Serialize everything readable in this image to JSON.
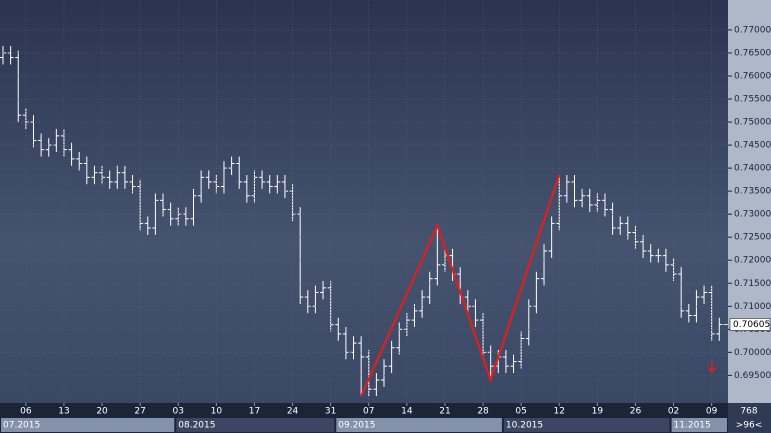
{
  "chart_data": {
    "type": "ohlc",
    "dates": [
      "2015-07-01",
      "2015-07-02",
      "2015-07-03",
      "2015-07-06",
      "2015-07-07",
      "2015-07-08",
      "2015-07-09",
      "2015-07-10",
      "2015-07-13",
      "2015-07-14",
      "2015-07-15",
      "2015-07-16",
      "2015-07-17",
      "2015-07-20",
      "2015-07-21",
      "2015-07-22",
      "2015-07-23",
      "2015-07-24",
      "2015-07-27",
      "2015-07-28",
      "2015-07-29",
      "2015-07-30",
      "2015-07-31",
      "2015-08-03",
      "2015-08-04",
      "2015-08-05",
      "2015-08-06",
      "2015-08-07",
      "2015-08-10",
      "2015-08-11",
      "2015-08-12",
      "2015-08-13",
      "2015-08-14",
      "2015-08-17",
      "2015-08-18",
      "2015-08-19",
      "2015-08-20",
      "2015-08-21",
      "2015-08-24",
      "2015-08-25",
      "2015-08-26",
      "2015-08-27",
      "2015-08-28",
      "2015-08-31",
      "2015-09-01",
      "2015-09-02",
      "2015-09-03",
      "2015-09-04",
      "2015-09-07",
      "2015-09-08",
      "2015-09-09",
      "2015-09-10",
      "2015-09-11",
      "2015-09-14",
      "2015-09-15",
      "2015-09-16",
      "2015-09-17",
      "2015-09-18",
      "2015-09-21",
      "2015-09-22",
      "2015-09-23",
      "2015-09-24",
      "2015-09-25",
      "2015-09-28",
      "2015-09-29",
      "2015-09-30",
      "2015-10-01",
      "2015-10-02",
      "2015-10-05",
      "2015-10-06",
      "2015-10-07",
      "2015-10-08",
      "2015-10-09",
      "2015-10-12",
      "2015-10-13",
      "2015-10-14",
      "2015-10-15",
      "2015-10-16",
      "2015-10-19",
      "2015-10-20",
      "2015-10-21",
      "2015-10-22",
      "2015-10-23",
      "2015-10-26",
      "2015-10-27",
      "2015-10-28",
      "2015-10-29",
      "2015-10-30",
      "2015-11-02",
      "2015-11-03",
      "2015-11-04",
      "2015-11-05",
      "2015-11-06",
      "2015-11-09",
      "2015-11-10"
    ],
    "open": [
      0.764,
      0.765,
      0.764,
      0.7515,
      0.75,
      0.746,
      0.744,
      0.745,
      0.747,
      0.744,
      0.742,
      0.741,
      0.738,
      0.739,
      0.738,
      0.737,
      0.739,
      0.737,
      0.736,
      0.728,
      0.727,
      0.733,
      0.731,
      0.729,
      0.73,
      0.729,
      0.734,
      0.738,
      0.737,
      0.736,
      0.74,
      0.741,
      0.737,
      0.734,
      0.738,
      0.737,
      0.736,
      0.737,
      0.735,
      0.73,
      0.712,
      0.71,
      0.713,
      0.714,
      0.706,
      0.704,
      0.7,
      0.702,
      0.699,
      0.692,
      0.694,
      0.697,
      0.701,
      0.705,
      0.707,
      0.709,
      0.712,
      0.716,
      0.719,
      0.721,
      0.717,
      0.712,
      0.71,
      0.707,
      0.7,
      0.697,
      0.699,
      0.697,
      0.698,
      0.703,
      0.71,
      0.716,
      0.722,
      0.728,
      0.734,
      0.737,
      0.733,
      0.734,
      0.732,
      0.733,
      0.731,
      0.727,
      0.728,
      0.726,
      0.724,
      0.722,
      0.721,
      0.721,
      0.719,
      0.717,
      0.709,
      0.708,
      0.712,
      0.713,
      0.704
    ],
    "high": [
      0.7665,
      0.7665,
      0.7655,
      0.753,
      0.7515,
      0.7475,
      0.7465,
      0.7485,
      0.7485,
      0.7455,
      0.7435,
      0.7425,
      0.7405,
      0.7405,
      0.7395,
      0.7405,
      0.7405,
      0.7385,
      0.7375,
      0.7295,
      0.7345,
      0.7345,
      0.7325,
      0.7315,
      0.7315,
      0.7355,
      0.7395,
      0.7395,
      0.7385,
      0.7415,
      0.7425,
      0.7425,
      0.7385,
      0.7395,
      0.7395,
      0.7385,
      0.7385,
      0.7385,
      0.7365,
      0.7315,
      0.7135,
      0.7145,
      0.7155,
      0.7155,
      0.7075,
      0.7055,
      0.7035,
      0.7035,
      0.7005,
      0.6955,
      0.6985,
      0.7025,
      0.7065,
      0.7085,
      0.7105,
      0.7135,
      0.7175,
      0.7275,
      0.7225,
      0.7225,
      0.7185,
      0.7135,
      0.7115,
      0.7085,
      0.7015,
      0.7005,
      0.7005,
      0.6995,
      0.7045,
      0.7115,
      0.7175,
      0.7235,
      0.7295,
      0.7385,
      0.7385,
      0.7385,
      0.7355,
      0.7355,
      0.7345,
      0.7345,
      0.7325,
      0.7295,
      0.7295,
      0.7275,
      0.7255,
      0.7235,
      0.7225,
      0.7225,
      0.7205,
      0.7185,
      0.7105,
      0.7135,
      0.7145,
      0.7145,
      0.7075
    ],
    "low": [
      0.7625,
      0.7625,
      0.75,
      0.7485,
      0.7445,
      0.7425,
      0.7425,
      0.7435,
      0.7425,
      0.7405,
      0.7395,
      0.7365,
      0.7365,
      0.7365,
      0.7355,
      0.7355,
      0.7355,
      0.7345,
      0.7265,
      0.7255,
      0.7255,
      0.7295,
      0.7275,
      0.7275,
      0.7275,
      0.7275,
      0.7325,
      0.7355,
      0.7345,
      0.7345,
      0.7385,
      0.7355,
      0.7325,
      0.7325,
      0.7355,
      0.7345,
      0.7345,
      0.7335,
      0.7285,
      0.7105,
      0.7085,
      0.7085,
      0.7115,
      0.7045,
      0.7025,
      0.6985,
      0.6985,
      0.6905,
      0.6905,
      0.6905,
      0.6925,
      0.6955,
      0.6995,
      0.7035,
      0.7055,
      0.7075,
      0.7105,
      0.7145,
      0.7175,
      0.7155,
      0.7105,
      0.7085,
      0.7055,
      0.6985,
      0.694,
      0.6955,
      0.6955,
      0.6955,
      0.6965,
      0.7015,
      0.7085,
      0.7145,
      0.7205,
      0.7265,
      0.7325,
      0.7315,
      0.7315,
      0.7305,
      0.7305,
      0.7295,
      0.7255,
      0.7255,
      0.7245,
      0.7225,
      0.7205,
      0.7195,
      0.7195,
      0.7175,
      0.7155,
      0.7075,
      0.7065,
      0.7065,
      0.7105,
      0.7025,
      0.7025
    ],
    "close": [
      0.765,
      0.764,
      0.7515,
      0.75,
      0.746,
      0.744,
      0.745,
      0.747,
      0.744,
      0.742,
      0.741,
      0.738,
      0.739,
      0.738,
      0.737,
      0.739,
      0.737,
      0.736,
      0.728,
      0.727,
      0.733,
      0.731,
      0.729,
      0.73,
      0.729,
      0.734,
      0.738,
      0.737,
      0.736,
      0.74,
      0.741,
      0.737,
      0.734,
      0.738,
      0.737,
      0.736,
      0.737,
      0.735,
      0.73,
      0.712,
      0.71,
      0.713,
      0.714,
      0.706,
      0.704,
      0.7,
      0.702,
      0.699,
      0.692,
      0.694,
      0.697,
      0.701,
      0.705,
      0.707,
      0.709,
      0.712,
      0.716,
      0.719,
      0.721,
      0.717,
      0.712,
      0.71,
      0.707,
      0.7,
      0.697,
      0.699,
      0.697,
      0.698,
      0.703,
      0.71,
      0.716,
      0.722,
      0.728,
      0.734,
      0.737,
      0.733,
      0.734,
      0.732,
      0.733,
      0.731,
      0.727,
      0.728,
      0.726,
      0.724,
      0.722,
      0.721,
      0.721,
      0.719,
      0.717,
      0.709,
      0.708,
      0.712,
      0.713,
      0.704,
      0.70605
    ],
    "bar_color": "#ffffff",
    "ylim": [
      0.689,
      0.7765
    ],
    "yticks": [
      {
        "value": 0.695,
        "label": "0.69500"
      },
      {
        "value": 0.7,
        "label": "0.70000"
      },
      {
        "value": 0.705,
        "label": "0.70500"
      },
      {
        "value": 0.71,
        "label": "0.71000"
      },
      {
        "value": 0.715,
        "label": "0.71500"
      },
      {
        "value": 0.72,
        "label": "0.72000"
      },
      {
        "value": 0.725,
        "label": "0.72500"
      },
      {
        "value": 0.73,
        "label": "0.73000"
      },
      {
        "value": 0.735,
        "label": "0.73500"
      },
      {
        "value": 0.74,
        "label": "0.74000"
      },
      {
        "value": 0.745,
        "label": "0.74500"
      },
      {
        "value": 0.75,
        "label": "0.75000"
      },
      {
        "value": 0.755,
        "label": "0.75500"
      },
      {
        "value": 0.76,
        "label": "0.76000"
      },
      {
        "value": 0.765,
        "label": "0.76500"
      },
      {
        "value": 0.77,
        "label": "0.77000"
      }
    ],
    "xticks": [
      {
        "value": "2015-07-06",
        "label": "06"
      },
      {
        "value": "2015-07-13",
        "label": "13"
      },
      {
        "value": "2015-07-20",
        "label": "20"
      },
      {
        "value": "2015-07-27",
        "label": "27"
      },
      {
        "value": "2015-08-03",
        "label": "03"
      },
      {
        "value": "2015-08-10",
        "label": "10"
      },
      {
        "value": "2015-08-17",
        "label": "17"
      },
      {
        "value": "2015-08-24",
        "label": "24"
      },
      {
        "value": "2015-08-31",
        "label": "31"
      },
      {
        "value": "2015-09-07",
        "label": "07"
      },
      {
        "value": "2015-09-14",
        "label": "14"
      },
      {
        "value": "2015-09-21",
        "label": "21"
      },
      {
        "value": "2015-09-28",
        "label": "28"
      },
      {
        "value": "2015-10-05",
        "label": "05"
      },
      {
        "value": "2015-10-12",
        "label": "12"
      },
      {
        "value": "2015-10-19",
        "label": "19"
      },
      {
        "value": "2015-10-26",
        "label": "26"
      },
      {
        "value": "2015-11-02",
        "label": "02"
      },
      {
        "value": "2015-11-09",
        "label": "09"
      }
    ],
    "month_labels": [
      {
        "value": "2015-07-01",
        "label": "07.2015"
      },
      {
        "value": "2015-08-03",
        "label": "08.2015"
      },
      {
        "value": "2015-09-01",
        "label": "09.2015"
      },
      {
        "value": "2015-10-01",
        "label": "10.2015"
      },
      {
        "value": "2015-11-02",
        "label": "11.2015"
      }
    ],
    "grid": true,
    "zigzag": {
      "color": "#e01e1e",
      "dates": [
        "2015-09-04",
        "2015-09-18",
        "2015-09-29",
        "2015-10-12"
      ],
      "prices": [
        0.6905,
        0.7275,
        0.694,
        0.7385
      ]
    },
    "last_price": 0.70605,
    "corner_top": "768",
    "corner_bottom": ">96<"
  }
}
